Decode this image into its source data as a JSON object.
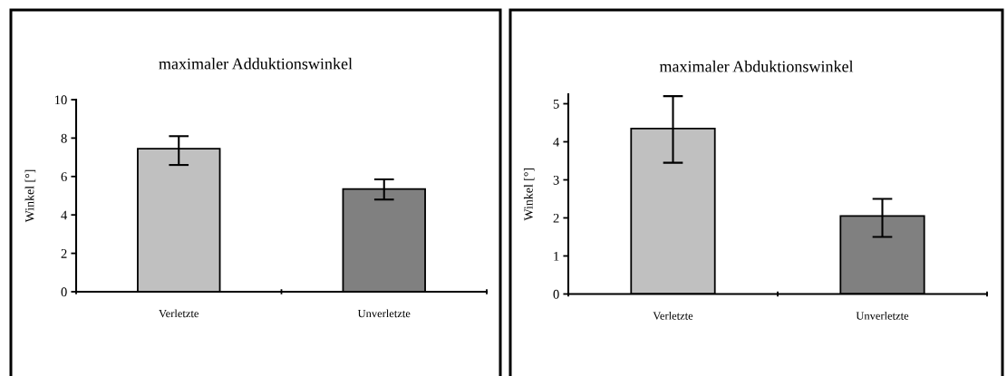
{
  "chart_data": [
    {
      "type": "bar",
      "title": "maximaler Adduktionswinkel",
      "ylabel": "Winkel [°]",
      "categories": [
        "Verletzte",
        "Unverletzte"
      ],
      "values": [
        7.45,
        5.35
      ],
      "colors": [
        "#c0c0c0",
        "#808080"
      ],
      "errors": [
        [
          6.6,
          8.1
        ],
        [
          4.8,
          5.85
        ]
      ],
      "ylim": [
        0,
        10
      ],
      "yticks": [
        0,
        2,
        4,
        6,
        8,
        10
      ]
    },
    {
      "type": "bar",
      "title": "maximaler Abduktionswinkel",
      "ylabel": "Winkel [°]",
      "categories": [
        "Verletzte",
        "Unverletzte"
      ],
      "values": [
        4.35,
        2.05
      ],
      "colors": [
        "#c0c0c0",
        "#808080"
      ],
      "errors": [
        [
          3.45,
          5.2
        ],
        [
          1.5,
          2.5
        ]
      ],
      "ylim": [
        0,
        5.25
      ],
      "yticks": [
        0,
        1,
        2,
        3,
        4,
        5
      ]
    }
  ]
}
